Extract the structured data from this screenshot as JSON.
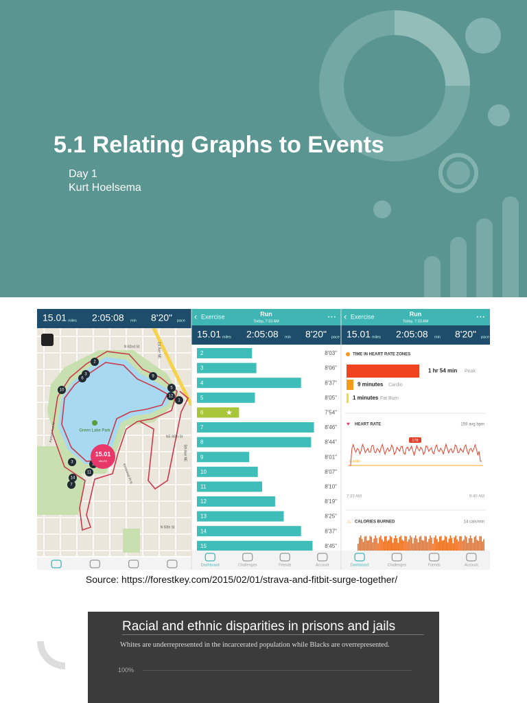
{
  "header": {
    "title": "5.1 Relating Graphs to Events",
    "day": "Day 1",
    "author": "Kurt Hoelsema"
  },
  "screenshot": {
    "map_panel": {
      "distance": "15.01",
      "distance_unit": "miles",
      "duration": "2:05:08",
      "duration_unit": "min",
      "pace": "8'20\"",
      "pace_unit": "pace",
      "badge_value": "15.01",
      "badge_unit": "MILES",
      "park_label": "Green Lake Park",
      "streets": [
        "N 82nd St",
        "NE 65th St",
        "N 50th St",
        "Aurora Ave N",
        "Kirkwood Pl N",
        "1st Ave NE",
        "5th Ave NE"
      ],
      "pins": [
        "2",
        "3",
        "6",
        "10",
        "9",
        "5",
        "12",
        "1",
        "3",
        "14",
        "7",
        "11",
        "2"
      ]
    },
    "splits_panel": {
      "back": "Exercise",
      "title": "Run",
      "subtitle": "Today, 7:33 AM",
      "menu": "• • •",
      "distance": "15.01",
      "distance_unit": "miles",
      "duration": "2:05:08",
      "duration_unit": "min",
      "pace": "8'20\"",
      "pace_unit": "pace",
      "splits": [
        {
          "km": "2",
          "pace": "8'03\""
        },
        {
          "km": "3",
          "pace": "8'06\""
        },
        {
          "km": "4",
          "pace": "8'37\""
        },
        {
          "km": "5",
          "pace": "8'05\""
        },
        {
          "km": "6",
          "pace": "7'54\""
        },
        {
          "km": "7",
          "pace": "8'46\""
        },
        {
          "km": "8",
          "pace": "8'44\""
        },
        {
          "km": "9",
          "pace": "8'01\""
        },
        {
          "km": "10",
          "pace": "8'07\""
        },
        {
          "km": "11",
          "pace": "8'10\""
        },
        {
          "km": "12",
          "pace": "8'19\""
        },
        {
          "km": "13",
          "pace": "8'25\""
        },
        {
          "km": "14",
          "pace": "8'37\""
        },
        {
          "km": "15",
          "pace": "8'45\""
        }
      ]
    },
    "hr_panel": {
      "back": "Exercise",
      "title": "Run",
      "subtitle": "Today, 7:33 AM",
      "menu": "• • •",
      "distance": "15.01",
      "distance_unit": "miles",
      "duration": "2:05:08",
      "duration_unit": "min",
      "pace": "8'20\"",
      "pace_unit": "pace",
      "zones_title": "TIME IN HEART RATE ZONES",
      "zones": [
        {
          "time": "1 hr 54 min",
          "zone": "Peak"
        },
        {
          "time": "9 minutes",
          "zone": "Cardio"
        },
        {
          "time": "1 minutes",
          "zone": "Fat Burn"
        }
      ],
      "hr_title": "HEART RATE",
      "hr_avg": "159 avg bpm",
      "hr_max": "178",
      "hr_zone_line": "Cardio",
      "start_time": "7:33 AM",
      "end_time": "9:40 AM",
      "cal_title": "CALORIES BURNED",
      "cal_rate": "14 cals/min"
    },
    "nav": [
      "Dashboard",
      "Challenges",
      "Friends",
      "Account"
    ]
  },
  "source": "Source: https://forestkey.com/2015/02/01/strava-and-fitbit-surge-together/",
  "embedded_chart": {
    "title": "Racial and ethnic disparities in prisons and jails",
    "subtitle": "Whites are underrepresented in the incarcerated population while Blacks are overrepresented.",
    "tick": "100%"
  }
}
